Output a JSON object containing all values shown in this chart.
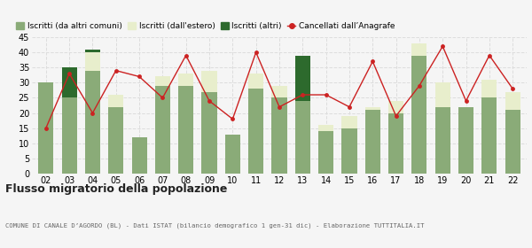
{
  "years": [
    "02",
    "03",
    "04",
    "05",
    "06",
    "07",
    "08",
    "09",
    "10",
    "11",
    "12",
    "13",
    "14",
    "15",
    "16",
    "17",
    "18",
    "19",
    "20",
    "21",
    "22"
  ],
  "iscritti_altri_comuni": [
    30,
    25,
    34,
    22,
    12,
    29,
    29,
    27,
    13,
    28,
    25,
    24,
    14,
    15,
    21,
    20,
    39,
    22,
    22,
    25,
    21
  ],
  "iscritti_estero": [
    0,
    0,
    6,
    4,
    0,
    3,
    4,
    7,
    0,
    5,
    4,
    0,
    2,
    4,
    1,
    4,
    4,
    8,
    0,
    6,
    6
  ],
  "iscritti_altri": [
    0,
    10,
    1,
    0,
    0,
    0,
    0,
    0,
    0,
    0,
    0,
    15,
    0,
    0,
    0,
    0,
    0,
    0,
    0,
    0,
    0
  ],
  "cancellati": [
    15,
    33,
    20,
    34,
    32,
    25,
    39,
    24,
    18,
    40,
    22,
    26,
    26,
    22,
    37,
    19,
    29,
    42,
    24,
    39,
    28
  ],
  "color_altri_comuni": "#8aab78",
  "color_estero": "#e8eecc",
  "color_altri": "#2d6a2d",
  "color_cancellati": "#cc2222",
  "bg_color": "#f5f5f5",
  "grid_color": "#dddddd",
  "title": "Flusso migratorio della popolazione",
  "subtitle": "COMUNE DI CANALE D’AGORDO (BL) - Dati ISTAT (bilancio demografico 1 gen-31 dic) - Elaborazione TUTTITALIA.IT",
  "legend_labels": [
    "Iscritti (da altri comuni)",
    "Iscritti (dall'estero)",
    "Iscritti (altri)",
    "Cancellati dall’Anagrafe"
  ],
  "ylim": [
    0,
    45
  ],
  "yticks": [
    0,
    5,
    10,
    15,
    20,
    25,
    30,
    35,
    40,
    45
  ]
}
